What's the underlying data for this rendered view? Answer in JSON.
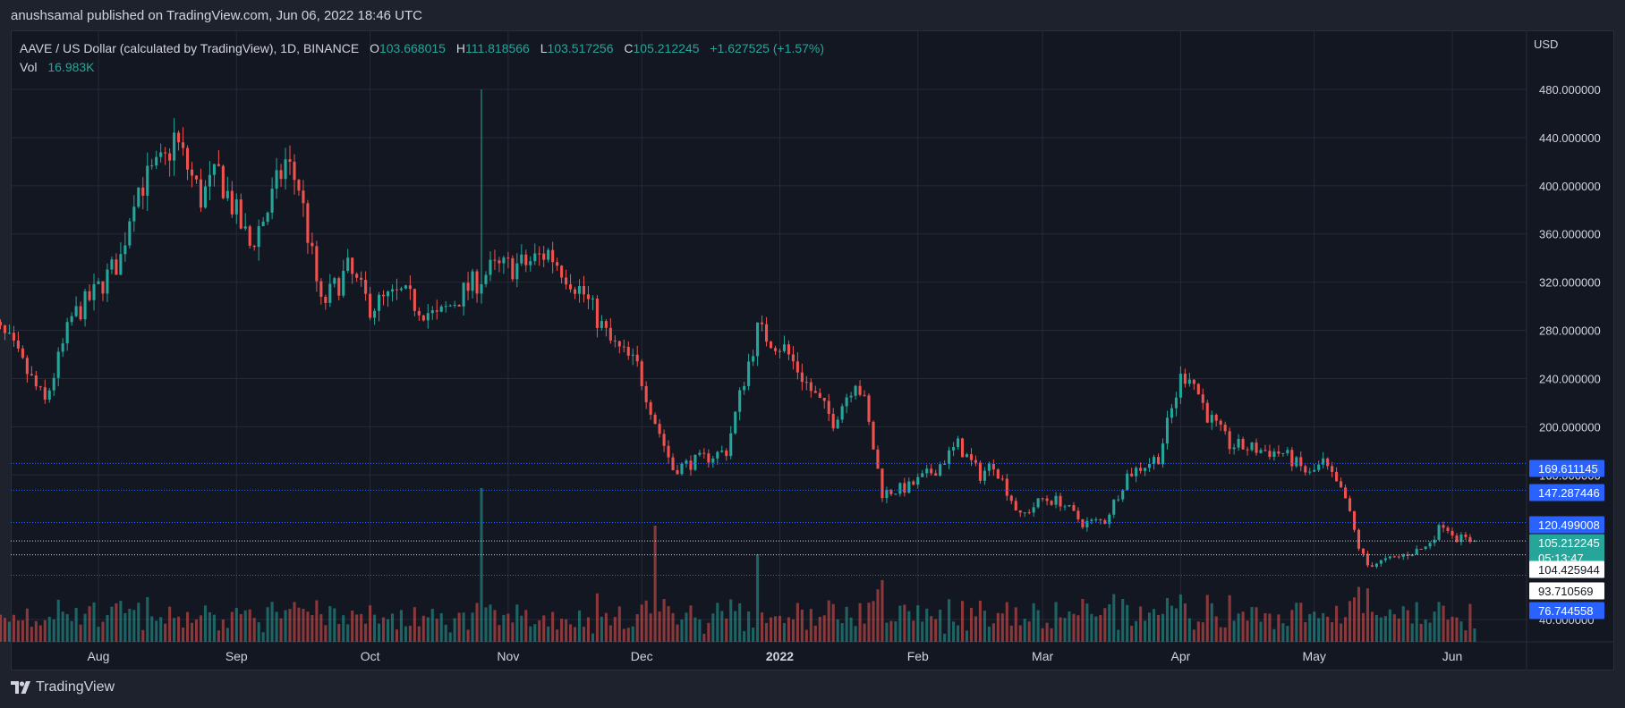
{
  "header": {
    "publisher_line": "anushsamal published on TradingView.com, Jun 06, 2022 18:46 UTC"
  },
  "legend": {
    "symbol": "AAVE / US Dollar (calculated by TradingView), 1D, BINANCE",
    "open_label": "O",
    "open": "103.668015",
    "high_label": "H",
    "high": "111.818566",
    "low_label": "L",
    "low": "103.517256",
    "close_label": "C",
    "close": "105.212245",
    "change": "+1.627525 (+1.57%)",
    "vol_label": "Vol",
    "vol": "16.983K"
  },
  "price_axis": {
    "currency": "USD"
  },
  "footer": {
    "brand": "TradingView"
  },
  "colors": {
    "up": "#26a69a",
    "down": "#ef5350",
    "bg": "#131722",
    "grid": "#252a37",
    "level_line": "#2962ff"
  },
  "chart_data": {
    "type": "candlestick",
    "y_ticks": [
      480,
      440,
      400,
      360,
      320,
      280,
      240,
      200,
      160,
      40
    ],
    "y_tick_labels": [
      "480.000000",
      "440.000000",
      "400.000000",
      "360.000000",
      "320.000000",
      "280.000000",
      "240.000000",
      "200.000000",
      "160.000000",
      "40.000000"
    ],
    "x_labels": [
      "Aug",
      "Sep",
      "Oct",
      "Nov",
      "Dec",
      "2022",
      "Feb",
      "Mar",
      "Apr",
      "May",
      "Jun"
    ],
    "x_label_dates": [
      "2021-08-01",
      "2021-09-01",
      "2021-10-01",
      "2021-11-01",
      "2021-12-01",
      "2022-01-01",
      "2022-02-01",
      "2022-03-01",
      "2022-04-01",
      "2022-05-01",
      "2022-06-01"
    ],
    "start_date": "2021-07-07",
    "horizontal_levels": [
      {
        "value": 169.611145,
        "label": "169.611145",
        "style": "dotted-blue",
        "badge": "blue"
      },
      {
        "value": 147.287446,
        "label": "147.287446",
        "style": "dotted-blue",
        "badge": "blue"
      },
      {
        "value": 120.499008,
        "label": "120.499008",
        "style": "dotted-blue",
        "badge": "blue"
      },
      {
        "value": 105.212245,
        "label": "105.212245",
        "style": "dotted-white",
        "badge": "teal",
        "countdown": "05:13:47"
      },
      {
        "value": 104.425944,
        "label": "104.425944",
        "style": "none",
        "badge": "white"
      },
      {
        "value": 93.710569,
        "label": "93.710569",
        "style": "dotted-white",
        "badge": "white"
      },
      {
        "value": 76.744558,
        "label": "76.744558",
        "style": "dotted-blue",
        "badge": "blue"
      }
    ],
    "extra_axis_labels": [
      {
        "value": 160,
        "label": "160.000000",
        "note": "partly covered by badge"
      }
    ],
    "anchors": [
      [
        "2021-07-07",
        290
      ],
      [
        "2021-07-12",
        270
      ],
      [
        "2021-07-20",
        220
      ],
      [
        "2021-07-26",
        290
      ],
      [
        "2021-07-31",
        310
      ],
      [
        "2021-08-06",
        340
      ],
      [
        "2021-08-09",
        395
      ],
      [
        "2021-08-16",
        420
      ],
      [
        "2021-08-18",
        440
      ],
      [
        "2021-08-24",
        390
      ],
      [
        "2021-08-28",
        410
      ],
      [
        "2021-09-04",
        350
      ],
      [
        "2021-09-08",
        380
      ],
      [
        "2021-09-12",
        420
      ],
      [
        "2021-09-15",
        400
      ],
      [
        "2021-09-20",
        300
      ],
      [
        "2021-09-26",
        330
      ],
      [
        "2021-10-01",
        300
      ],
      [
        "2021-10-08",
        310
      ],
      [
        "2021-10-16",
        290
      ],
      [
        "2021-10-23",
        315
      ],
      [
        "2021-10-28",
        330
      ],
      [
        "2021-11-05",
        335
      ],
      [
        "2021-11-10",
        345
      ],
      [
        "2021-11-18",
        310
      ],
      [
        "2021-11-24",
        270
      ],
      [
        "2021-11-30",
        250
      ],
      [
        "2021-12-04",
        205
      ],
      [
        "2021-12-08",
        165
      ],
      [
        "2021-12-16",
        175
      ],
      [
        "2021-12-20",
        180
      ],
      [
        "2021-12-24",
        240
      ],
      [
        "2021-12-27",
        280
      ],
      [
        "2022-01-02",
        265
      ],
      [
        "2022-01-08",
        230
      ],
      [
        "2022-01-13",
        205
      ],
      [
        "2022-01-18",
        240
      ],
      [
        "2022-01-20",
        220
      ],
      [
        "2022-01-24",
        145
      ],
      [
        "2022-01-30",
        150
      ],
      [
        "2022-02-05",
        165
      ],
      [
        "2022-02-10",
        185
      ],
      [
        "2022-02-15",
        160
      ],
      [
        "2022-02-18",
        170
      ],
      [
        "2022-02-24",
        125
      ],
      [
        "2022-03-01",
        140
      ],
      [
        "2022-03-05",
        138
      ],
      [
        "2022-03-10",
        120
      ],
      [
        "2022-03-15",
        122
      ],
      [
        "2022-03-20",
        160
      ],
      [
        "2022-03-27",
        175
      ],
      [
        "2022-04-01",
        240
      ],
      [
        "2022-04-03",
        245
      ],
      [
        "2022-04-07",
        210
      ],
      [
        "2022-04-12",
        185
      ],
      [
        "2022-04-20",
        180
      ],
      [
        "2022-04-24",
        178
      ],
      [
        "2022-04-30",
        160
      ],
      [
        "2022-05-03",
        170
      ],
      [
        "2022-05-08",
        140
      ],
      [
        "2022-05-11",
        100
      ],
      [
        "2022-05-13",
        85
      ],
      [
        "2022-05-20",
        92
      ],
      [
        "2022-05-26",
        100
      ],
      [
        "2022-05-30",
        120
      ],
      [
        "2022-06-02",
        108
      ],
      [
        "2022-06-06",
        105.2
      ]
    ]
  }
}
